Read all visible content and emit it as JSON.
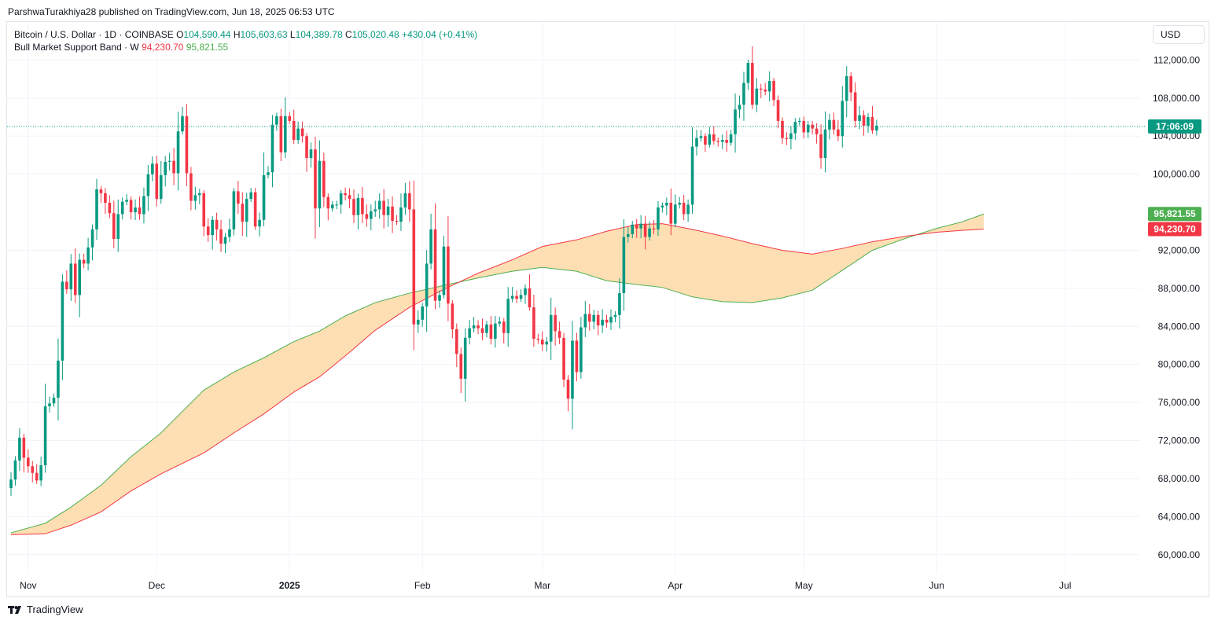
{
  "header": {
    "published": "ParshwaTurakhiya28 published on TradingView.com, Jun 18, 2025 06:53 UTC"
  },
  "legend": {
    "symbol": "Bitcoin / U.S. Dollar · 1D · COINBASE",
    "o_label": "O",
    "o": "104,590.44",
    "h_label": "H",
    "h": "105,603.63",
    "l_label": "L",
    "l": "104,389.78",
    "c_label": "C",
    "c": "105,020.48",
    "change": "+430.04 (+0.41%)",
    "indicator": "Bull Market Support Band · W",
    "band_lower": "94,230.70",
    "band_upper": "95,821.55"
  },
  "currency_button": "USD",
  "footer": {
    "logo": "𝟭𝟳",
    "brand": "TradingView"
  },
  "colors": {
    "up": "#089981",
    "down": "#f23645",
    "band_green": "#4caf50",
    "band_red": "#f23645",
    "band_fill": "#fdd9a6"
  },
  "price_tags": {
    "countdown": "17:06:09",
    "band_upper": "95,821.55",
    "band_lower": "94,230.70"
  },
  "chart_data": {
    "type": "candlestick",
    "ylim": [
      58000,
      116000
    ],
    "y_ticks": [
      "112,000.00",
      "108,000.00",
      "104,000.00",
      "100,000.00",
      "92,000.00",
      "88,000.00",
      "84,000.00",
      "80,000.00",
      "76,000.00",
      "72,000.00",
      "68,000.00",
      "64,000.00",
      "60,000.00"
    ],
    "y_tick_values": [
      112000,
      108000,
      104000,
      100000,
      92000,
      88000,
      84000,
      80000,
      76000,
      72000,
      68000,
      64000,
      60000
    ],
    "x_labels": [
      {
        "text": "Nov",
        "day": 4,
        "bold": false
      },
      {
        "text": "Dec",
        "day": 34,
        "bold": false
      },
      {
        "text": "2025",
        "day": 65,
        "bold": true
      },
      {
        "text": "Feb",
        "day": 96,
        "bold": false
      },
      {
        "text": "Mar",
        "day": 124,
        "bold": false
      },
      {
        "text": "Apr",
        "day": 155,
        "bold": false
      },
      {
        "text": "May",
        "day": 185,
        "bold": false
      },
      {
        "text": "Jun",
        "day": 216,
        "bold": false
      },
      {
        "text": "Jul",
        "day": 246,
        "bold": false
      }
    ],
    "start_date": "2024-10-28",
    "current_price": 105020.48,
    "closes": [
      67900,
      69900,
      72300,
      70200,
      69300,
      68600,
      67800,
      69400,
      75600,
      75900,
      76500,
      80400,
      88700,
      87900,
      90600,
      87300,
      91000,
      90600,
      92300,
      94200,
      98400,
      98000,
      97000,
      95900,
      93200,
      95800,
      97100,
      97300,
      96000,
      96500,
      95800,
      97700,
      100000,
      101100,
      97400,
      99900,
      101300,
      101400,
      100100,
      104500,
      106100,
      100100,
      97200,
      97800,
      98000,
      94500,
      93600,
      95200,
      94200,
      92700,
      93400,
      94200,
      98200,
      96900,
      95000,
      97400,
      98100,
      94500,
      95200,
      99900,
      100200,
      105200,
      106100,
      102300,
      106100,
      105600,
      103600,
      104800,
      104000,
      101700,
      102600,
      96400,
      101400,
      97600,
      96400,
      96800,
      96800,
      98000,
      97800,
      97400,
      95700,
      97500,
      95800,
      95300,
      96100,
      96300,
      97200,
      95700,
      96600,
      95100,
      95000,
      96500,
      98000,
      96300,
      84200,
      84700,
      86100,
      90600,
      94200,
      86700,
      87300,
      92400,
      86400,
      83700,
      81100,
      78500,
      82800,
      83800,
      84100,
      83800,
      83300,
      84200,
      82700,
      84300,
      84500,
      83300,
      86900,
      87200,
      86900,
      87300,
      88000,
      86000,
      82700,
      82600,
      82100,
      82400,
      85200,
      83500,
      82800,
      78400,
      76400,
      82500,
      79200,
      83900,
      85300,
      84500,
      85200,
      84100,
      84700,
      84400,
      85000,
      85200,
      87500,
      93400,
      93700,
      94700,
      94300,
      94800,
      93400,
      94300,
      94200,
      96500,
      96700,
      97000,
      94800,
      96800,
      97000,
      95800,
      96800,
      102900,
      103800,
      104000,
      103100,
      104200,
      103500,
      103400,
      103600,
      103300,
      104200,
      106800,
      107300,
      109600,
      111700,
      107300,
      109000,
      108900,
      108700,
      109800,
      107800,
      105600,
      103800,
      103700,
      104300,
      105500,
      105600,
      104400,
      105200,
      104800,
      104200,
      101700,
      104700,
      105700,
      104700,
      104000,
      107700,
      110300,
      108600,
      105600,
      106200,
      105100,
      106000,
      104600,
      105100
    ],
    "opens_note": "",
    "band_upper_points": [
      [
        0,
        62300
      ],
      [
        8,
        63300
      ],
      [
        14,
        65000
      ],
      [
        21,
        67300
      ],
      [
        28,
        70300
      ],
      [
        35,
        72800
      ],
      [
        45,
        77300
      ],
      [
        52,
        79200
      ],
      [
        59,
        80700
      ],
      [
        66,
        82400
      ],
      [
        72,
        83500
      ],
      [
        78,
        85100
      ],
      [
        85,
        86500
      ],
      [
        93,
        87500
      ],
      [
        101,
        88300
      ],
      [
        109,
        89100
      ],
      [
        117,
        89800
      ],
      [
        124,
        90200
      ],
      [
        132,
        89800
      ],
      [
        139,
        88800
      ],
      [
        146,
        88400
      ],
      [
        152,
        88100
      ],
      [
        159,
        87100
      ],
      [
        166,
        86600
      ],
      [
        173,
        86500
      ],
      [
        180,
        87000
      ],
      [
        187,
        87800
      ],
      [
        194,
        89900
      ],
      [
        201,
        92000
      ],
      [
        209,
        93300
      ],
      [
        216,
        94300
      ],
      [
        222,
        95000
      ],
      [
        227,
        95821
      ]
    ],
    "band_lower_points": [
      [
        0,
        62100
      ],
      [
        8,
        62200
      ],
      [
        14,
        63100
      ],
      [
        21,
        64500
      ],
      [
        28,
        66700
      ],
      [
        35,
        68500
      ],
      [
        45,
        70700
      ],
      [
        52,
        72800
      ],
      [
        59,
        74800
      ],
      [
        66,
        77100
      ],
      [
        72,
        78700
      ],
      [
        78,
        80900
      ],
      [
        85,
        83600
      ],
      [
        93,
        86000
      ],
      [
        101,
        87900
      ],
      [
        109,
        89600
      ],
      [
        117,
        91000
      ],
      [
        124,
        92400
      ],
      [
        132,
        93100
      ],
      [
        139,
        94000
      ],
      [
        146,
        94700
      ],
      [
        152,
        94800
      ],
      [
        159,
        94200
      ],
      [
        166,
        93500
      ],
      [
        173,
        92700
      ],
      [
        180,
        92000
      ],
      [
        187,
        91600
      ],
      [
        194,
        92200
      ],
      [
        201,
        92900
      ],
      [
        209,
        93500
      ],
      [
        216,
        93900
      ],
      [
        222,
        94100
      ],
      [
        227,
        94230
      ]
    ]
  }
}
